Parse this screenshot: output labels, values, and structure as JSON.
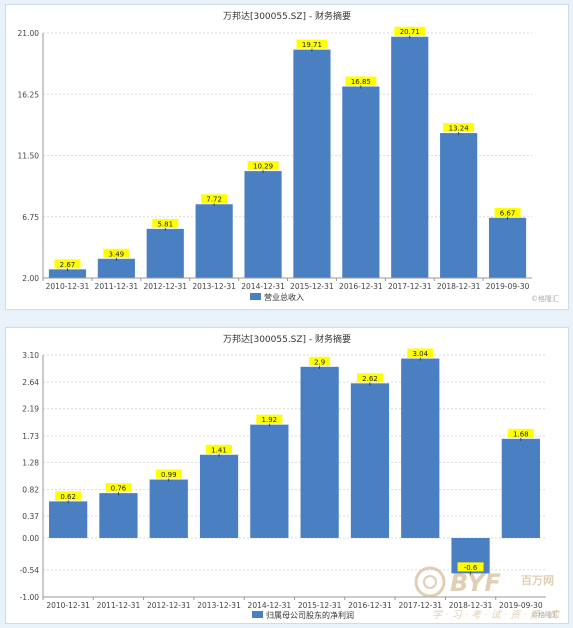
{
  "chart_data": [
    {
      "type": "bar",
      "title": "万邦达[300055.SZ] - 财务摘要",
      "categories": [
        "2010-12-31",
        "2011-12-31",
        "2012-12-31",
        "2013-12-31",
        "2014-12-31",
        "2015-12-31",
        "2016-12-31",
        "2017-12-31",
        "2018-12-31",
        "2019-09-30"
      ],
      "series": [
        {
          "name": "营业总收入",
          "values": [
            2.67,
            3.49,
            5.81,
            7.72,
            10.29,
            19.71,
            16.85,
            20.71,
            13.24,
            6.67
          ]
        }
      ],
      "value_labels": [
        "2.67",
        "3.49",
        "5.81",
        "7.72",
        "10.29",
        "19.71",
        "16.85",
        "20.71",
        "13.24",
        "6.67"
      ],
      "y_ticks": [
        "21.00",
        "16.25",
        "11.50",
        "6.75",
        "2.00"
      ],
      "ylim": [
        2.0,
        21.0
      ],
      "grid": true,
      "legend": "bottom-center",
      "watermark": "©格隆汇",
      "colors": {
        "bar": "#4a7fc1",
        "label_bg": "#ffff00"
      }
    },
    {
      "type": "bar",
      "title": "万邦达[300055.SZ] - 财务摘要",
      "categories": [
        "2010-12-31",
        "2011-12-31",
        "2012-12-31",
        "2013-12-31",
        "2014-12-31",
        "2015-12-31",
        "2016-12-31",
        "2017-12-31",
        "2018-12-31",
        "2019-09-30"
      ],
      "series": [
        {
          "name": "归属母公司股东的净利润",
          "values": [
            0.62,
            0.76,
            0.99,
            1.41,
            1.92,
            2.9,
            2.62,
            3.04,
            -0.6,
            1.68
          ]
        }
      ],
      "value_labels": [
        "0.62",
        "0.76",
        "0.99",
        "1.41",
        "1.92",
        "2.9",
        "2.62",
        "3.04",
        "-0.6",
        "1.68"
      ],
      "y_ticks": [
        "3.10",
        "2.64",
        "2.19",
        "1.73",
        "1.28",
        "0.82",
        "0.37",
        "0.00",
        "-0.54",
        "-1.00"
      ],
      "ylim": [
        -1.0,
        3.1
      ],
      "grid": true,
      "legend": "bottom-center",
      "watermark": "©格隆汇",
      "colors": {
        "bar": "#4a7fc1",
        "label_bg": "#ffff00"
      }
    }
  ],
  "overlay_watermark": {
    "brand": "BYF",
    "brand_cn": "百万网",
    "slogan": "学 · 习 · 考 · 试 · 资 · 源 · 库"
  }
}
